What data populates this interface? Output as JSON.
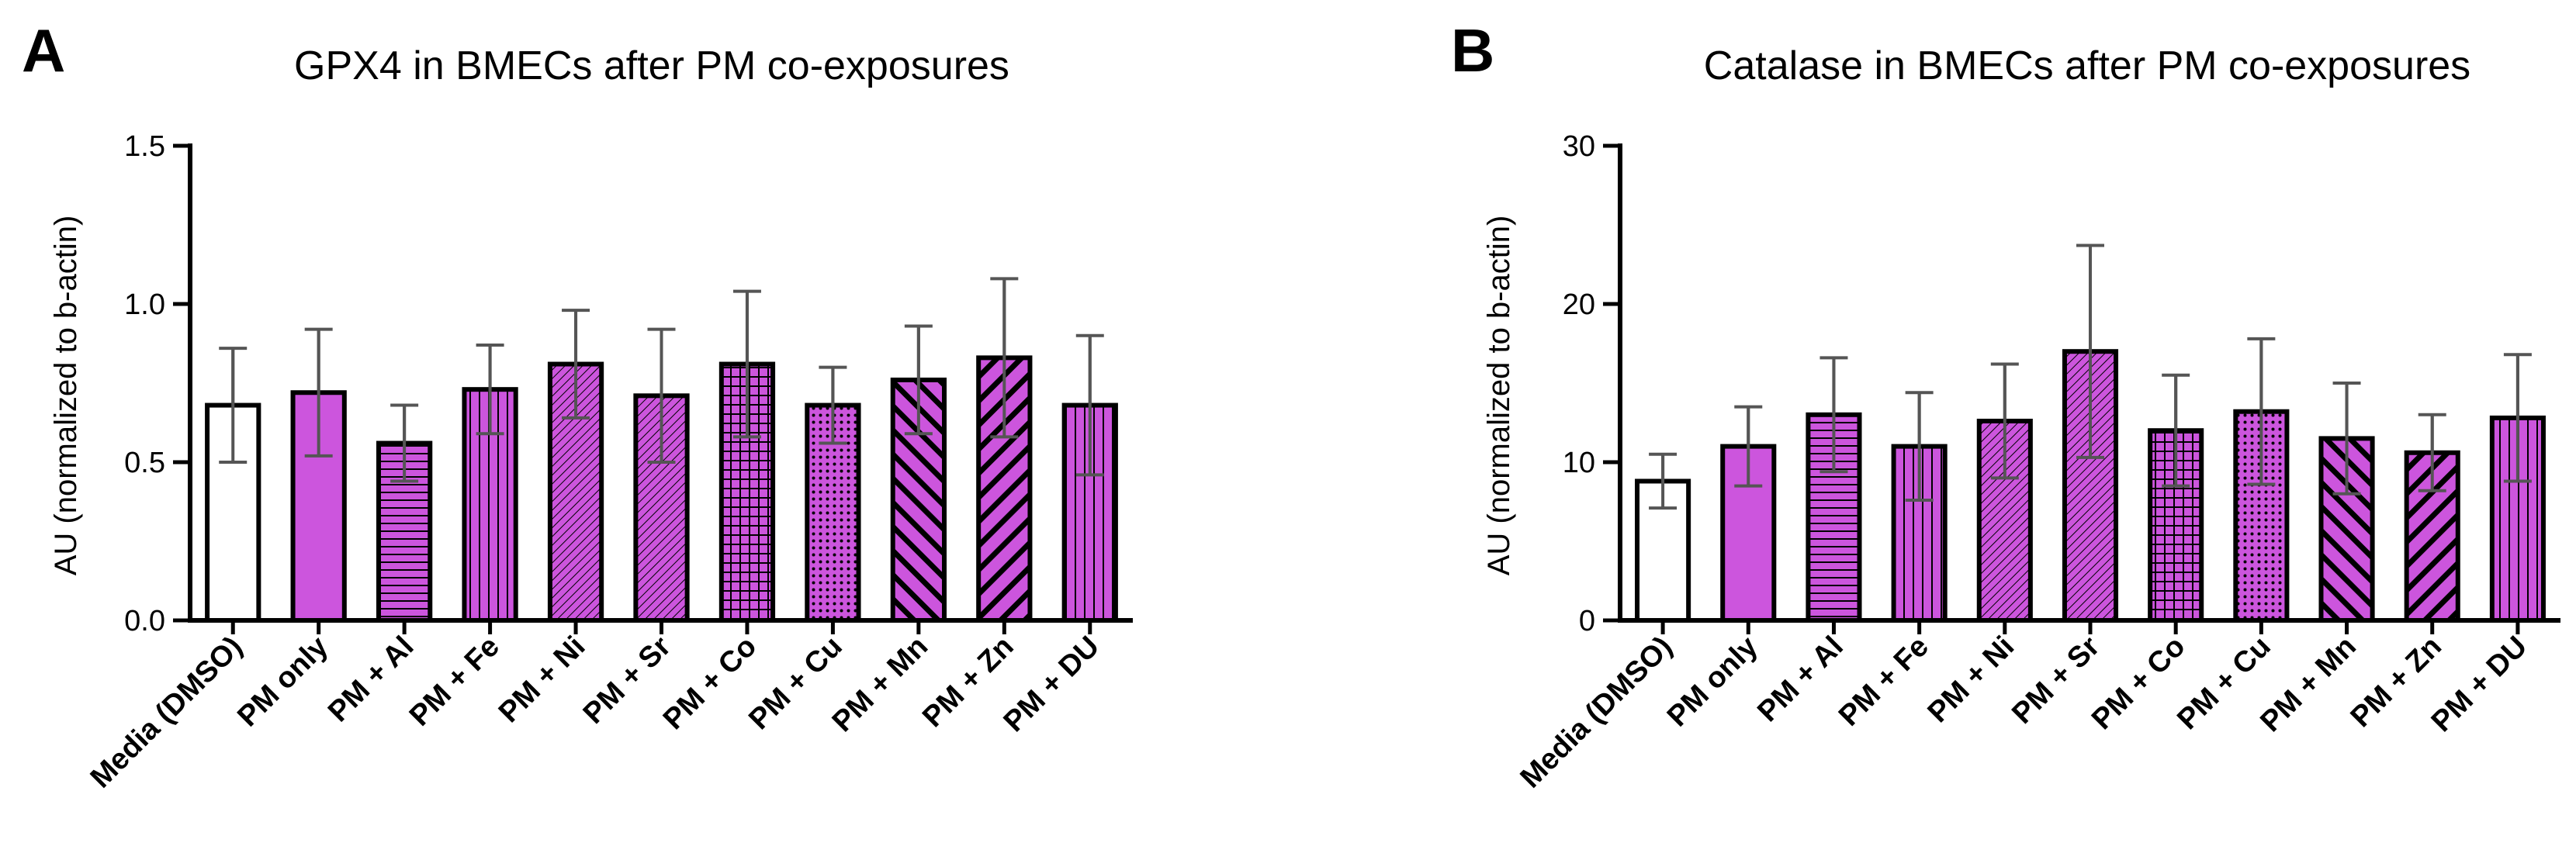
{
  "chart_data": [
    {
      "panel": "A",
      "type": "bar",
      "title": "GPX4 in BMECs after PM co-exposures",
      "xlabel": "",
      "ylabel": "AU (normalized to b-actin)",
      "ylim": [
        0,
        1.5
      ],
      "yticks": [
        "0.0",
        "0.5",
        "1.0",
        "1.5"
      ],
      "categories": [
        "Media (DMSO)",
        "PM only",
        "PM + Al",
        "PM + Fe",
        "PM + Ni",
        "PM + Sr",
        "PM + Co",
        "PM + Cu",
        "PM + Mn",
        "PM + Zn",
        "PM + DU"
      ],
      "values": [
        0.68,
        0.72,
        0.56,
        0.73,
        0.81,
        0.71,
        0.81,
        0.68,
        0.76,
        0.83,
        0.68
      ],
      "error": [
        0.18,
        0.2,
        0.12,
        0.14,
        0.17,
        0.21,
        0.23,
        0.12,
        0.17,
        0.25,
        0.22
      ],
      "patterns": [
        "none",
        "solid",
        "hlines",
        "vlines",
        "diag-fine",
        "diag-fine",
        "grid",
        "dots",
        "diag-back",
        "diag-fwd",
        "vlines"
      ]
    },
    {
      "panel": "B",
      "type": "bar",
      "title": "Catalase in BMECs after PM co-exposures",
      "xlabel": "",
      "ylabel": "AU (normalized to b-actin)",
      "ylim": [
        0,
        30
      ],
      "yticks": [
        "0",
        "10",
        "20",
        "30"
      ],
      "categories": [
        "Media (DMSO)",
        "PM only",
        "PM + Al",
        "PM + Fe",
        "PM + Ni",
        "PM + Sr",
        "PM + Co",
        "PM + Cu",
        "PM + Mn",
        "PM + Zn",
        "PM + DU"
      ],
      "values": [
        8.8,
        11.0,
        13.0,
        11.0,
        12.6,
        17.0,
        12.0,
        13.2,
        11.5,
        10.6,
        12.8
      ],
      "error": [
        1.7,
        2.5,
        3.6,
        3.4,
        3.6,
        6.7,
        3.5,
        4.6,
        3.5,
        2.4,
        4.0
      ],
      "patterns": [
        "none",
        "solid",
        "hlines",
        "vlines",
        "diag-fine",
        "diag-fine",
        "grid",
        "dots",
        "diag-back",
        "diag-fwd",
        "vlines"
      ]
    }
  ],
  "colors": {
    "bar_fill": "#cc55dd",
    "media_fill": "#ffffff",
    "stroke": "#000000",
    "error": "#555555"
  }
}
